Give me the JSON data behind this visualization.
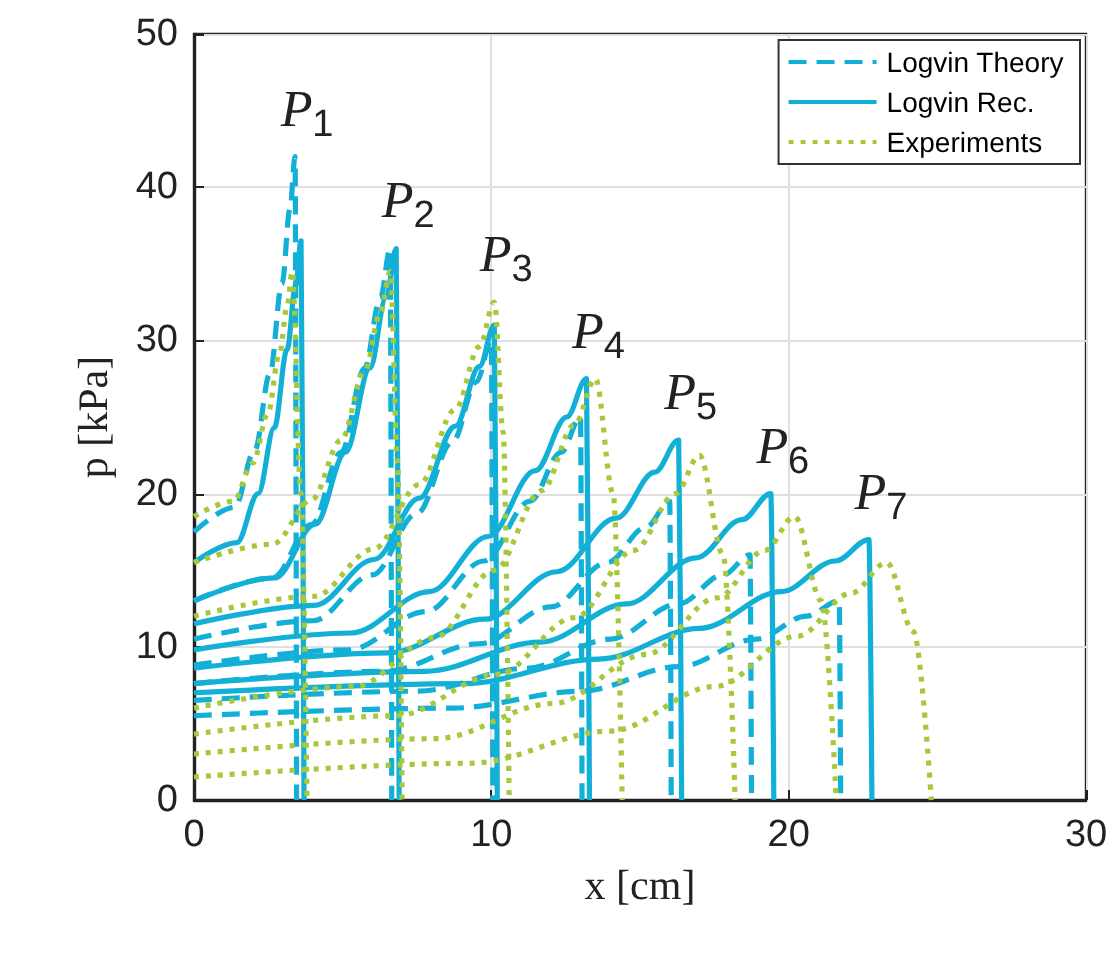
{
  "chart_data": {
    "type": "line",
    "xlabel": "x [cm]",
    "ylabel": "p [kPa]",
    "xlim": [
      0,
      30
    ],
    "xticks": [
      0,
      10,
      20,
      30
    ],
    "ylim": [
      0,
      50
    ],
    "yticks": [
      0,
      10,
      20,
      30,
      40,
      50
    ],
    "grid": true,
    "legend": "top right",
    "marker": "none",
    "series": [
      {
        "name": "Logvin Theory",
        "color": "#12b0d6",
        "line_style": "dashed",
        "x": [
          0,
          1.36,
          2.04,
          2.55,
          2.96,
          3.23,
          3.4,
          3.45
        ],
        "values": [
          17.5,
          19.1,
          22.8,
          27.8,
          33.7,
          38.6,
          42,
          0
        ]
      },
      {
        "color": "#12b0d6",
        "line_style": "dashed",
        "x": [
          0,
          2.64,
          3.96,
          4.95,
          5.74,
          6.27,
          6.6,
          6.65
        ],
        "values": [
          13,
          14.5,
          18,
          22.7,
          28.2,
          32.8,
          36,
          0
        ]
      },
      {
        "color": "#12b0d6",
        "line_style": "dashed",
        "x": [
          0,
          4,
          6,
          7.5,
          8.7,
          9.5,
          10,
          10.05
        ],
        "values": [
          10.5,
          11.7,
          14.7,
          18.7,
          23.4,
          27.3,
          30,
          0
        ]
      },
      {
        "color": "#12b0d6",
        "line_style": "dashed",
        "x": [
          0,
          5.2,
          7.8,
          9.75,
          11.3,
          12.35,
          13,
          13.05
        ],
        "values": [
          8.8,
          9.8,
          12.3,
          15.6,
          19.5,
          22.7,
          25,
          0
        ]
      },
      {
        "color": "#12b0d6",
        "line_style": "dashed",
        "x": [
          0,
          6.4,
          9.6,
          12,
          13.9,
          15.2,
          16,
          16.05
        ],
        "values": [
          7.6,
          8.4,
          10.2,
          12.6,
          15.5,
          17.8,
          19.5,
          0
        ]
      },
      {
        "color": "#12b0d6",
        "line_style": "dashed",
        "x": [
          0,
          7.5,
          11.2,
          14,
          16.3,
          17.8,
          18.7,
          18.75
        ],
        "values": [
          6.5,
          7.1,
          8.6,
          10.5,
          12.8,
          14.7,
          16,
          0
        ]
      },
      {
        "color": "#12b0d6",
        "line_style": "dashed",
        "x": [
          0,
          8.7,
          13,
          16.3,
          18.9,
          20.6,
          21.7,
          21.75
        ],
        "values": [
          5.5,
          6,
          7.1,
          8.7,
          10.5,
          12,
          13,
          0
        ]
      },
      {
        "name": "Logvin Rec.",
        "color": "#12b0d6",
        "line_style": "solid",
        "x": [
          0,
          1.44,
          2.16,
          2.7,
          3.13,
          3.42,
          3.6,
          3.7
        ],
        "values": [
          15.5,
          16.8,
          20,
          24.3,
          29.4,
          33.6,
          36.5,
          0
        ]
      },
      {
        "color": "#12b0d6",
        "line_style": "solid",
        "x": [
          0,
          2.72,
          4.08,
          5.1,
          5.92,
          6.46,
          6.8,
          6.9
        ],
        "values": [
          13,
          14.5,
          18,
          22.7,
          28.2,
          32.8,
          36,
          0
        ]
      },
      {
        "color": "#12b0d6",
        "line_style": "solid",
        "x": [
          0,
          4.04,
          6.06,
          7.58,
          8.79,
          9.6,
          10.1,
          10.2
        ],
        "values": [
          11.5,
          12.7,
          15.7,
          19.7,
          24.4,
          28.3,
          31,
          0
        ]
      },
      {
        "color": "#12b0d6",
        "line_style": "solid",
        "x": [
          0,
          5.28,
          7.92,
          9.9,
          11.48,
          12.54,
          13.2,
          13.3
        ],
        "values": [
          9.8,
          10.9,
          13.6,
          17.2,
          21.5,
          25,
          27.5,
          0
        ]
      },
      {
        "color": "#12b0d6",
        "line_style": "solid",
        "x": [
          0,
          6.52,
          9.78,
          12.2,
          14.2,
          15.5,
          16.3,
          16.4
        ],
        "values": [
          8.6,
          9.6,
          11.8,
          14.9,
          18.4,
          21.4,
          23.5,
          0
        ]
      },
      {
        "color": "#12b0d6",
        "line_style": "solid",
        "x": [
          0,
          7.76,
          11.64,
          14.55,
          16.88,
          18.43,
          19.4,
          19.5
        ],
        "values": [
          7.6,
          8.4,
          10.3,
          12.8,
          15.8,
          18.3,
          20,
          0
        ]
      },
      {
        "color": "#12b0d6",
        "line_style": "solid",
        "x": [
          0,
          9.08,
          13.62,
          17,
          19.75,
          21.57,
          22.7,
          22.8
        ],
        "values": [
          7,
          7.6,
          9.2,
          11.2,
          13.6,
          15.6,
          17,
          0
        ]
      },
      {
        "name": "Experiments",
        "color": "#a8c83c",
        "line_style": "dotted",
        "x": [
          0,
          1.32,
          1.98,
          2.48,
          2.87,
          3.14,
          3.3,
          3.6,
          3.8
        ],
        "values": [
          18.5,
          19.5,
          22,
          25.2,
          29.1,
          32.3,
          34.5,
          20,
          0
        ]
      },
      {
        "color": "#a8c83c",
        "line_style": "dotted",
        "x": [
          0,
          2.64,
          3.96,
          4.95,
          5.74,
          6.27,
          6.6,
          6.85,
          7
        ],
        "values": [
          15.5,
          16.7,
          19.6,
          23.5,
          28,
          31.8,
          34.5,
          22,
          0
        ]
      },
      {
        "color": "#a8c83c",
        "line_style": "dotted",
        "x": [
          0,
          4.04,
          6.06,
          7.58,
          8.79,
          9.6,
          10.1,
          10.4,
          10.6
        ],
        "values": [
          12,
          13.3,
          16.4,
          20.6,
          25.5,
          29.6,
          32.5,
          24,
          0
        ]
      },
      {
        "color": "#a8c83c",
        "line_style": "dotted",
        "x": [
          0,
          5.4,
          8.1,
          10.1,
          11.7,
          12.8,
          13.5,
          14.1,
          14.4
        ],
        "values": [
          6,
          7.4,
          10.6,
          15,
          20.2,
          24.5,
          27.5,
          20,
          0
        ]
      },
      {
        "color": "#a8c83c",
        "line_style": "dotted",
        "x": [
          0,
          6.8,
          10.2,
          12.8,
          14.8,
          16.2,
          17,
          17.8,
          18.2
        ],
        "values": [
          4.3,
          5.5,
          8.2,
          11.9,
          16.3,
          20,
          22.5,
          16,
          0
        ]
      },
      {
        "color": "#a8c83c",
        "line_style": "dotted",
        "x": [
          0,
          8.1,
          12.1,
          15.2,
          17.6,
          19.2,
          20.2,
          21.1,
          21.6
        ],
        "values": [
          3,
          4,
          6.3,
          9.5,
          13.2,
          16.3,
          18.5,
          13,
          0
        ]
      },
      {
        "color": "#a8c83c",
        "line_style": "dotted",
        "x": [
          0,
          9.3,
          14,
          17.5,
          20.3,
          22.1,
          23.3,
          24.2,
          24.8
        ],
        "values": [
          1.5,
          2.4,
          4.5,
          7.4,
          10.7,
          13.5,
          15.5,
          11,
          0
        ]
      }
    ],
    "annotations": [
      {
        "text": "P$_{1}$",
        "x": 3.4,
        "y": 42
      },
      {
        "text": "P$_{2}$",
        "x": 6.8,
        "y": 36
      },
      {
        "text": "P$_{3}$",
        "x": 10.1,
        "y": 32.5
      },
      {
        "text": "P$_{4}$",
        "x": 13.2,
        "y": 27.5
      },
      {
        "text": "P$_{5}$",
        "x": 16.3,
        "y": 23.5
      },
      {
        "text": "P$_{6}$",
        "x": 19.4,
        "y": 20
      },
      {
        "text": "P$_{7}$",
        "x": 22.7,
        "y": 17
      }
    ]
  }
}
